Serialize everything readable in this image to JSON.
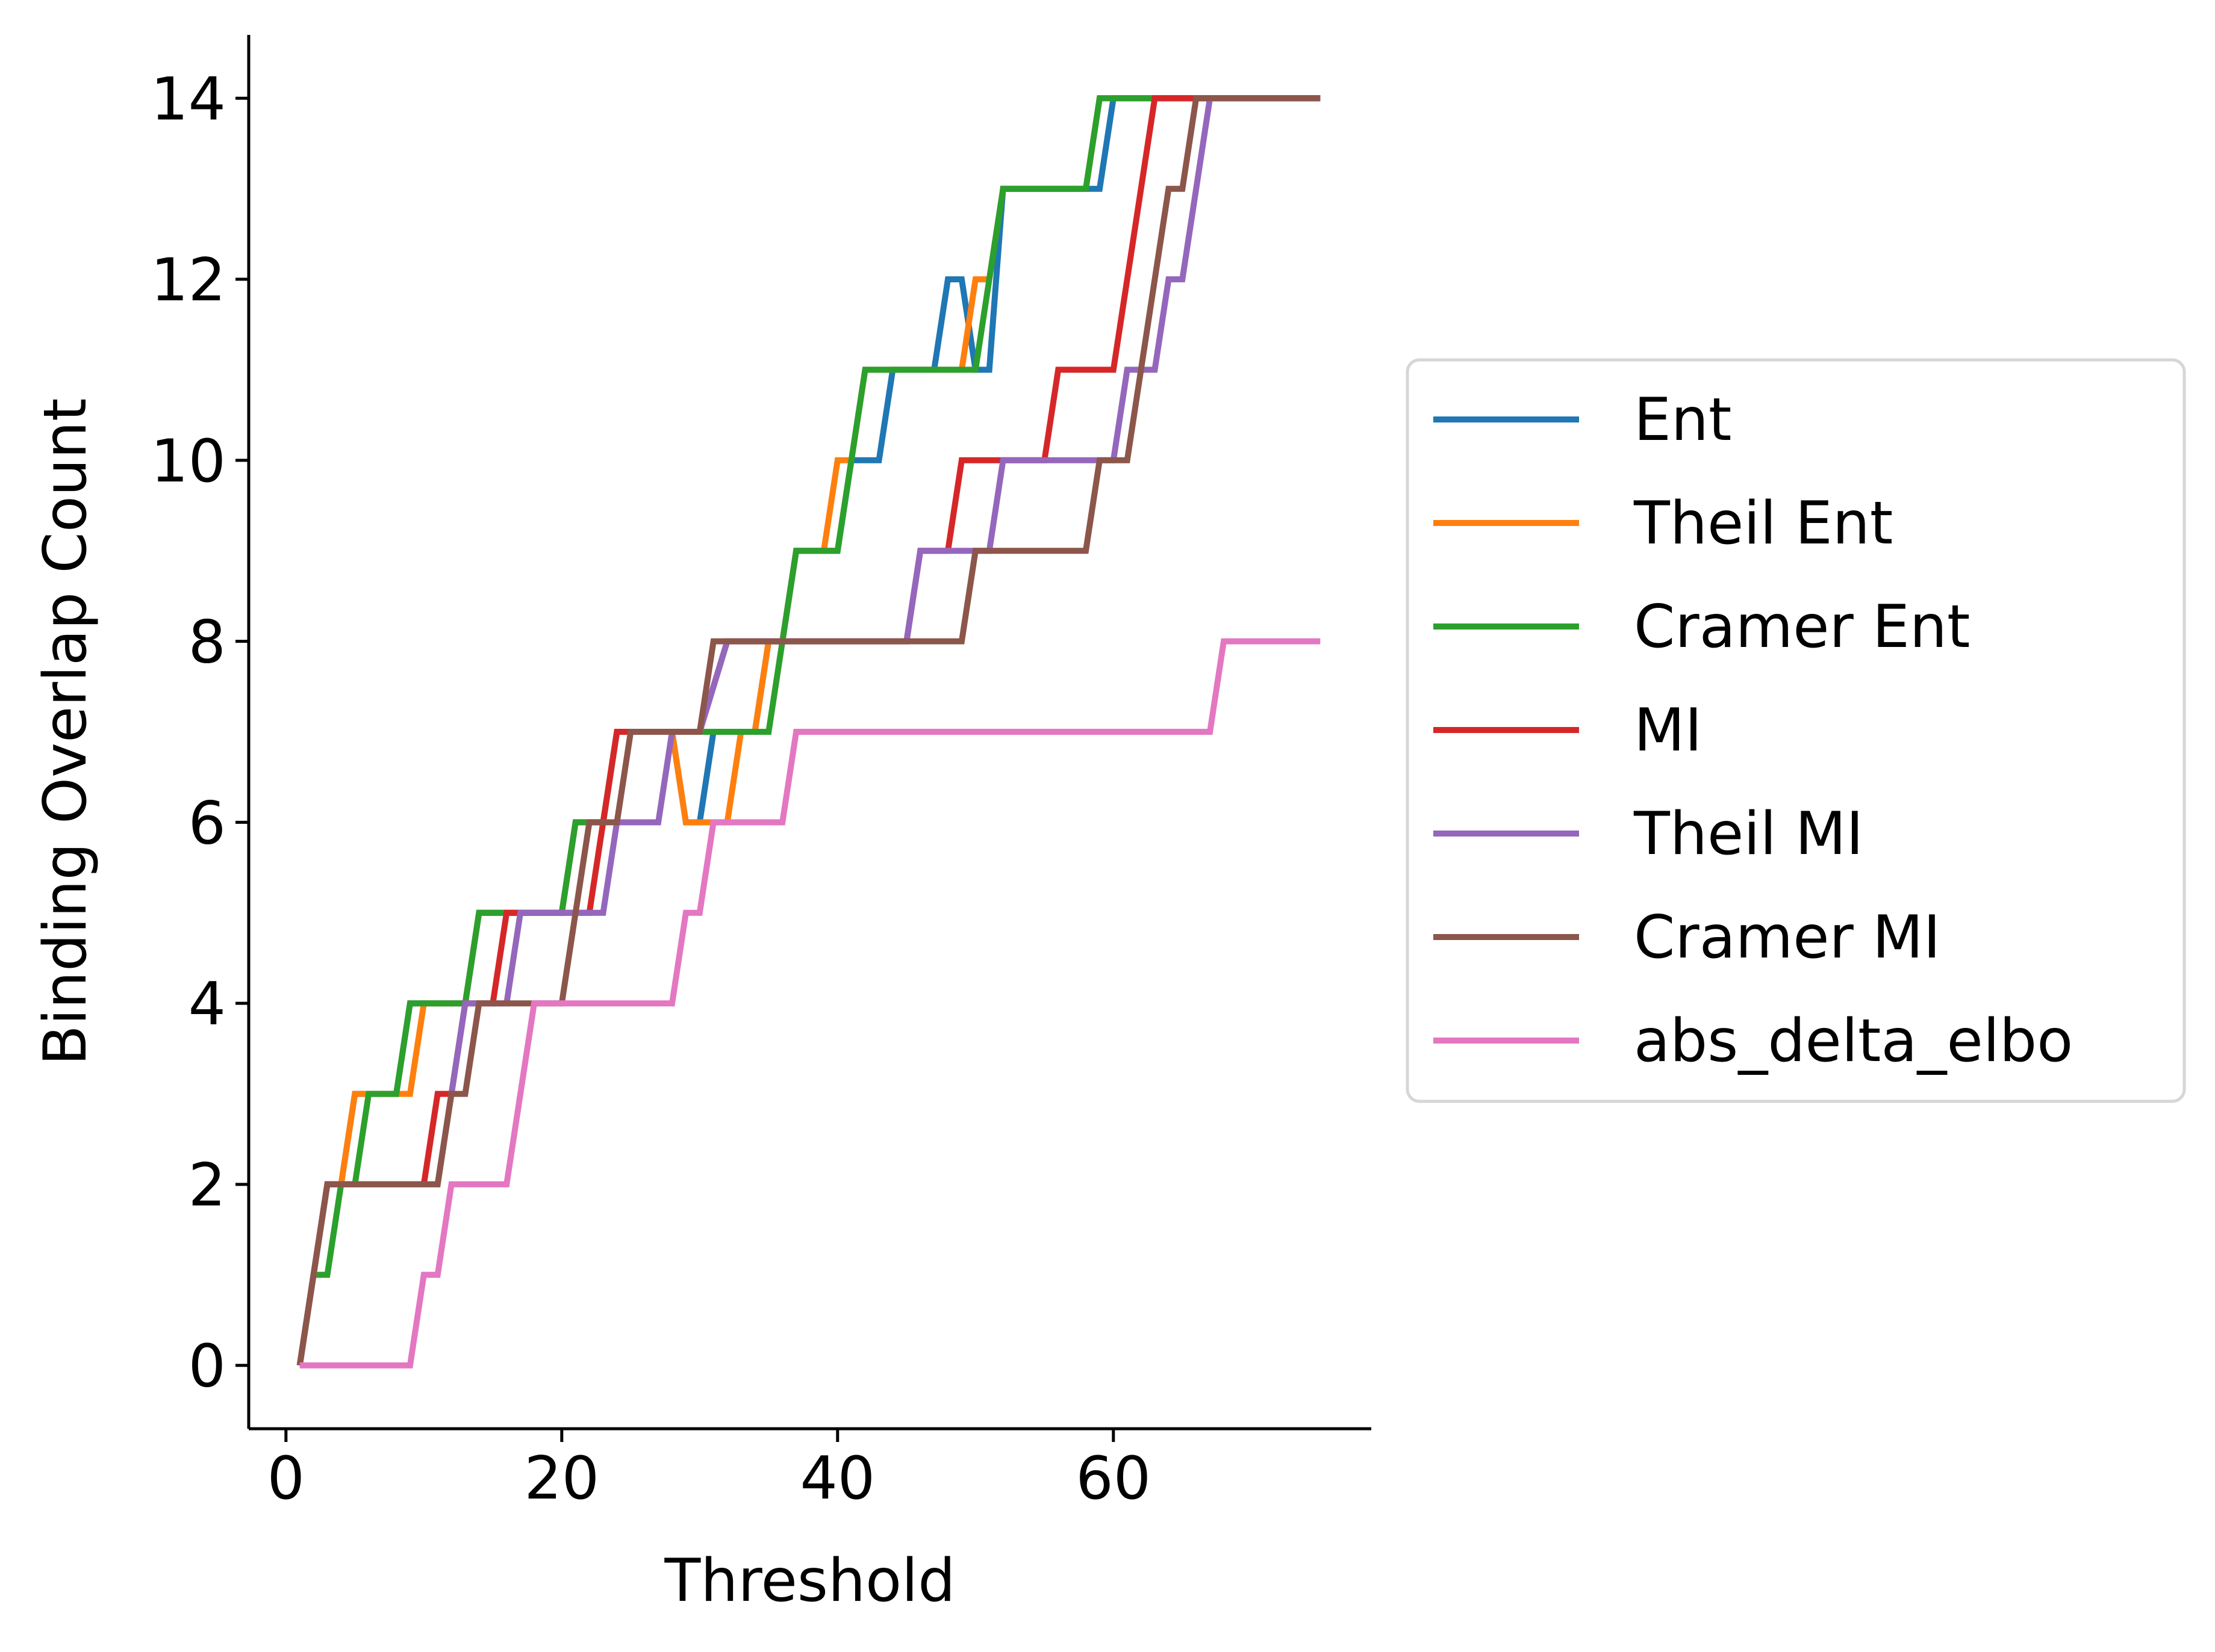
{
  "chart_data": {
    "type": "line",
    "line_style": "steps",
    "title": "",
    "xlabel": "Threshold",
    "ylabel": "Binding Overlap Count",
    "xlim": [
      -2.7,
      78.7
    ],
    "ylim": [
      -0.7,
      14.7
    ],
    "xticks": [
      0,
      20,
      40,
      60
    ],
    "yticks": [
      0,
      2,
      4,
      6,
      8,
      10,
      12,
      14
    ],
    "grid": false,
    "legend_position": "right-outside",
    "series": [
      {
        "name": "Ent",
        "color": "#1f77b4",
        "x": [
          1,
          2,
          3,
          4,
          5,
          6,
          8,
          9,
          10,
          13,
          14,
          17,
          20,
          21,
          22,
          23,
          24,
          28,
          29,
          30,
          31,
          34,
          35,
          36,
          37,
          39,
          40,
          41,
          42,
          43,
          44,
          47,
          48,
          49,
          50,
          51,
          52,
          58,
          59,
          60,
          75
        ],
        "y": [
          0,
          1,
          2,
          2,
          3,
          3,
          3,
          4,
          4,
          4,
          5,
          5,
          5,
          6,
          6,
          6,
          7,
          7,
          6,
          6,
          7,
          7,
          8,
          8,
          9,
          9,
          9,
          10,
          10,
          10,
          11,
          11,
          12,
          12,
          11,
          11,
          13,
          13,
          13,
          14,
          14
        ]
      },
      {
        "name": "Theil Ent",
        "color": "#ff7f0e",
        "x": [
          1,
          2,
          3,
          4,
          5,
          6,
          8,
          9,
          10,
          13,
          14,
          17,
          20,
          21,
          22,
          23,
          24,
          28,
          29,
          30,
          31,
          32,
          33,
          34,
          35,
          36,
          37,
          39,
          40,
          41,
          42,
          48,
          49,
          50,
          51,
          52,
          58,
          59,
          75
        ],
        "y": [
          0,
          1,
          2,
          2,
          3,
          3,
          3,
          3,
          4,
          4,
          5,
          5,
          5,
          6,
          6,
          6,
          7,
          7,
          6,
          6,
          6,
          6,
          7,
          7,
          8,
          8,
          9,
          9,
          10,
          10,
          11,
          11,
          11,
          12,
          12,
          13,
          13,
          14,
          14
        ]
      },
      {
        "name": "Cramer Ent",
        "color": "#2ca02c",
        "x": [
          1,
          2,
          3,
          4,
          5,
          6,
          8,
          9,
          10,
          13,
          14,
          17,
          20,
          21,
          22,
          23,
          24,
          28,
          29,
          30,
          31,
          34,
          35,
          36,
          37,
          39,
          40,
          41,
          42,
          49,
          50,
          51,
          52,
          58,
          59,
          75
        ],
        "y": [
          0,
          1,
          1,
          2,
          2,
          3,
          3,
          4,
          4,
          4,
          5,
          5,
          5,
          6,
          6,
          6,
          7,
          7,
          7,
          7,
          7,
          7,
          7,
          8,
          9,
          9,
          9,
          10,
          11,
          11,
          11,
          12,
          13,
          13,
          14,
          14
        ]
      },
      {
        "name": "MI",
        "color": "#d62728",
        "x": [
          1,
          2,
          3,
          9,
          10,
          11,
          12,
          13,
          15,
          16,
          17,
          21,
          22,
          23,
          24,
          25,
          26,
          27,
          28,
          29,
          30,
          32,
          45,
          46,
          48,
          49,
          50,
          55,
          56,
          59,
          60,
          61,
          62,
          63,
          75
        ],
        "y": [
          0,
          1,
          2,
          2,
          2,
          3,
          3,
          4,
          4,
          5,
          5,
          5,
          5,
          6,
          7,
          7,
          7,
          7,
          7,
          7,
          7,
          8,
          8,
          9,
          9,
          10,
          10,
          10,
          11,
          11,
          11,
          12,
          13,
          14,
          14
        ]
      },
      {
        "name": "Theil MI",
        "color": "#9467bd",
        "x": [
          1,
          2,
          3,
          9,
          10,
          11,
          12,
          13,
          15,
          16,
          17,
          21,
          22,
          23,
          24,
          25,
          26,
          27,
          28,
          29,
          30,
          32,
          45,
          46,
          48,
          49,
          50,
          51,
          52,
          60,
          61,
          62,
          63,
          64,
          65,
          66,
          67,
          75
        ],
        "y": [
          0,
          1,
          2,
          2,
          2,
          2,
          3,
          4,
          4,
          4,
          5,
          5,
          5,
          5,
          6,
          6,
          6,
          6,
          7,
          7,
          7,
          8,
          8,
          9,
          9,
          9,
          9,
          9,
          10,
          10,
          11,
          11,
          11,
          12,
          12,
          13,
          14,
          14
        ]
      },
      {
        "name": "Cramer MI",
        "color": "#8c564b",
        "x": [
          1,
          2,
          3,
          9,
          10,
          11,
          12,
          13,
          14,
          20,
          21,
          22,
          24,
          25,
          29,
          30,
          31,
          48,
          49,
          50,
          57,
          58,
          59,
          60,
          61,
          62,
          63,
          64,
          65,
          66,
          75
        ],
        "y": [
          0,
          1,
          2,
          2,
          2,
          2,
          3,
          3,
          4,
          4,
          5,
          6,
          6,
          7,
          7,
          7,
          8,
          8,
          8,
          9,
          9,
          9,
          10,
          10,
          10,
          11,
          12,
          13,
          13,
          14,
          14
        ]
      },
      {
        "name": "abs_delta_elbo",
        "color": "#e377c2",
        "x": [
          1,
          8,
          9,
          10,
          11,
          12,
          15,
          16,
          17,
          18,
          27,
          28,
          29,
          30,
          31,
          35,
          36,
          37,
          67,
          68,
          75
        ],
        "y": [
          0,
          0,
          0,
          1,
          1,
          2,
          2,
          2,
          3,
          4,
          4,
          4,
          5,
          5,
          6,
          6,
          6,
          7,
          7,
          8,
          8
        ]
      }
    ]
  }
}
